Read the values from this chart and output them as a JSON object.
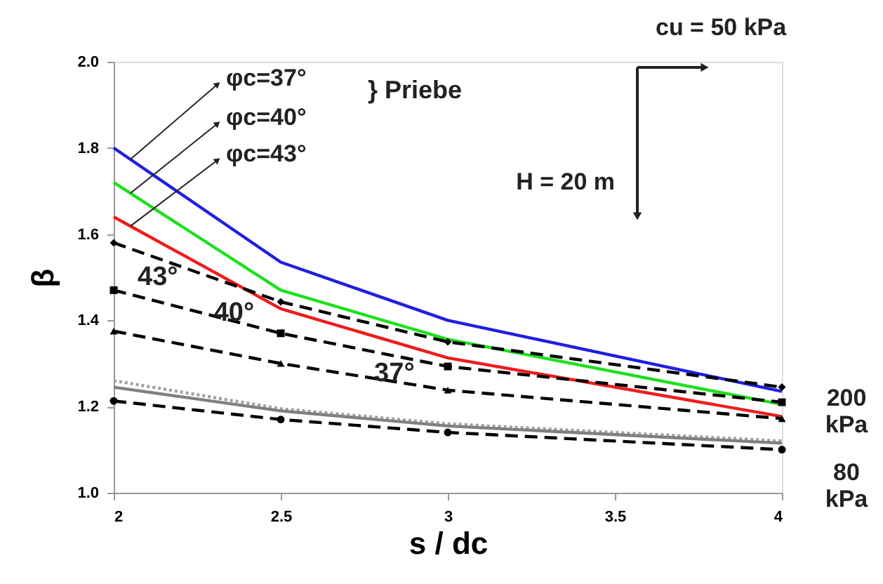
{
  "chart_data": {
    "type": "line",
    "xlabel": "s / dc",
    "ylabel": "β",
    "x": [
      2,
      2.5,
      3,
      4
    ],
    "xlim": [
      2,
      4
    ],
    "xticks": [
      2,
      2.5,
      3,
      3.5,
      4
    ],
    "ylim": [
      1,
      2
    ],
    "yticks": [
      {
        "value": 1,
        "label": "1.0"
      },
      1.2,
      1.4,
      1.6,
      1.8,
      {
        "value": 2,
        "label": "2.0"
      }
    ],
    "grid": false,
    "series": [
      {
        "color": "#1f1fe0",
        "line_style": "solid",
        "marker": "none",
        "values": [
          1.8,
          1.535,
          1.4,
          1.235
        ]
      },
      {
        "color": "#1ee01e",
        "line_style": "solid",
        "marker": "none",
        "values": [
          1.72,
          1.47,
          1.356,
          1.205
        ]
      },
      {
        "color": "#ee1c1c",
        "line_style": "solid",
        "marker": "none",
        "values": [
          1.64,
          1.427,
          1.313,
          1.177
        ]
      },
      {
        "color": "#000000",
        "line_style": "dashed",
        "marker": "diamond",
        "values": [
          1.58,
          1.443,
          1.35,
          1.245
        ]
      },
      {
        "color": "#000000",
        "line_style": "dashed",
        "marker": "square",
        "values": [
          1.47,
          1.37,
          1.293,
          1.21
        ]
      },
      {
        "color": "#000000",
        "line_style": "dashed",
        "marker": "triangle",
        "values": [
          1.375,
          1.3,
          1.238,
          1.172
        ]
      },
      {
        "color": "#a0a0a0",
        "line_style": "dotted",
        "marker": "none",
        "values": [
          1.26,
          1.195,
          1.16,
          1.12
        ]
      },
      {
        "color": "#808080",
        "line_style": "solid",
        "marker": "none",
        "values": [
          1.245,
          1.19,
          1.155,
          1.115
        ]
      },
      {
        "color": "#000000",
        "line_style": "dashed",
        "marker": "circle",
        "values": [
          1.213,
          1.17,
          1.14,
          1.1
        ]
      }
    ],
    "annotations": [
      "φc=37°",
      "φc=40°",
      "φc=43°",
      "43°",
      {
        "text": "40°",
        "x": 2.36,
        "y": 1.418
      },
      {
        "text": "37°",
        "x": 2.84,
        "y": 1.278
      },
      "} Priebe",
      "200 kPa",
      "80 kPa",
      "cu = 50 kPa",
      "H = 20 m"
    ]
  }
}
